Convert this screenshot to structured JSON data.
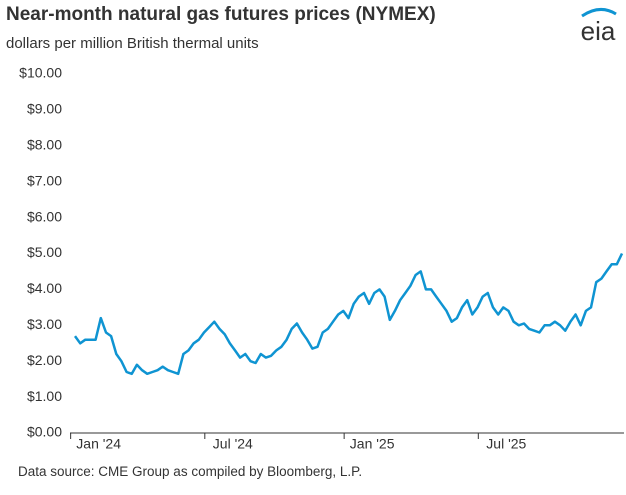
{
  "chart_data": {
    "type": "line",
    "title": "Near-month natural gas futures prices (NYMEX)",
    "subtitle": "dollars per million British thermal units",
    "logo": "eia",
    "source": "Data source: CME Group as compiled by Bloomberg, L.P.",
    "categories": [
      null,
      null,
      null,
      null,
      "Jan '24",
      null,
      null,
      null,
      null,
      null,
      null,
      null,
      null,
      null,
      null,
      null,
      null,
      null,
      null,
      null,
      null,
      null,
      null,
      null,
      null,
      null,
      null,
      null,
      null,
      null,
      "Jul '24",
      null,
      null,
      null,
      null,
      null,
      null,
      null,
      null,
      null,
      null,
      null,
      null,
      null,
      null,
      null,
      null,
      null,
      null,
      null,
      null,
      null,
      null,
      null,
      null,
      null,
      null,
      "Jan '25",
      null,
      null,
      null,
      null,
      null,
      null,
      null,
      null,
      null,
      null,
      null,
      null,
      null,
      null,
      null,
      null,
      null,
      null,
      null,
      null,
      null,
      null,
      null,
      null,
      null,
      "Jul '25",
      null,
      null,
      null,
      null,
      null,
      null,
      null,
      null,
      null,
      null,
      null,
      null,
      null,
      null,
      null,
      null,
      null,
      null,
      null,
      null,
      null,
      null,
      null
    ],
    "series": [
      {
        "name": "Near-month price",
        "color": "#0f94d2",
        "values": [
          2.7,
          2.5,
          2.6,
          2.6,
          2.6,
          3.2,
          2.8,
          2.7,
          2.2,
          2.0,
          1.7,
          1.65,
          1.9,
          1.75,
          1.65,
          1.7,
          1.75,
          1.85,
          1.75,
          1.7,
          1.65,
          2.2,
          2.3,
          2.5,
          2.6,
          2.8,
          2.95,
          3.1,
          2.9,
          2.75,
          2.5,
          2.3,
          2.1,
          2.2,
          2.0,
          1.95,
          2.2,
          2.1,
          2.15,
          2.3,
          2.4,
          2.6,
          2.9,
          3.05,
          2.8,
          2.6,
          2.35,
          2.4,
          2.8,
          2.9,
          3.1,
          3.3,
          3.4,
          3.2,
          3.6,
          3.8,
          3.9,
          3.6,
          3.9,
          4.0,
          3.8,
          3.15,
          3.4,
          3.7,
          3.9,
          4.1,
          4.4,
          4.5,
          4.0,
          4.0,
          3.8,
          3.6,
          3.4,
          3.1,
          3.2,
          3.5,
          3.7,
          3.3,
          3.5,
          3.8,
          3.9,
          3.5,
          3.3,
          3.5,
          3.4,
          3.1,
          3.0,
          3.05,
          2.9,
          2.85,
          2.8,
          3.0,
          3.0,
          3.1,
          3.0,
          2.85,
          3.1,
          3.3,
          3.0,
          3.4,
          3.5,
          4.2,
          4.3,
          4.5,
          4.7,
          4.7,
          5.0
        ]
      }
    ],
    "ylim": [
      0,
      10
    ],
    "yticks": [
      {
        "value": 0,
        "label": "$0.00"
      },
      {
        "value": 1,
        "label": "$1.00"
      },
      {
        "value": 2,
        "label": "$2.00"
      },
      {
        "value": 3,
        "label": "$3.00"
      },
      {
        "value": 4,
        "label": "$4.00"
      },
      {
        "value": 5,
        "label": "$5.00"
      },
      {
        "value": 6,
        "label": "$6.00"
      },
      {
        "value": 7,
        "label": "$7.00"
      },
      {
        "value": 8,
        "label": "$8.00"
      },
      {
        "value": 9,
        "label": "$9.00"
      },
      {
        "value": 10,
        "label": "$10.00"
      }
    ],
    "grid": false
  }
}
